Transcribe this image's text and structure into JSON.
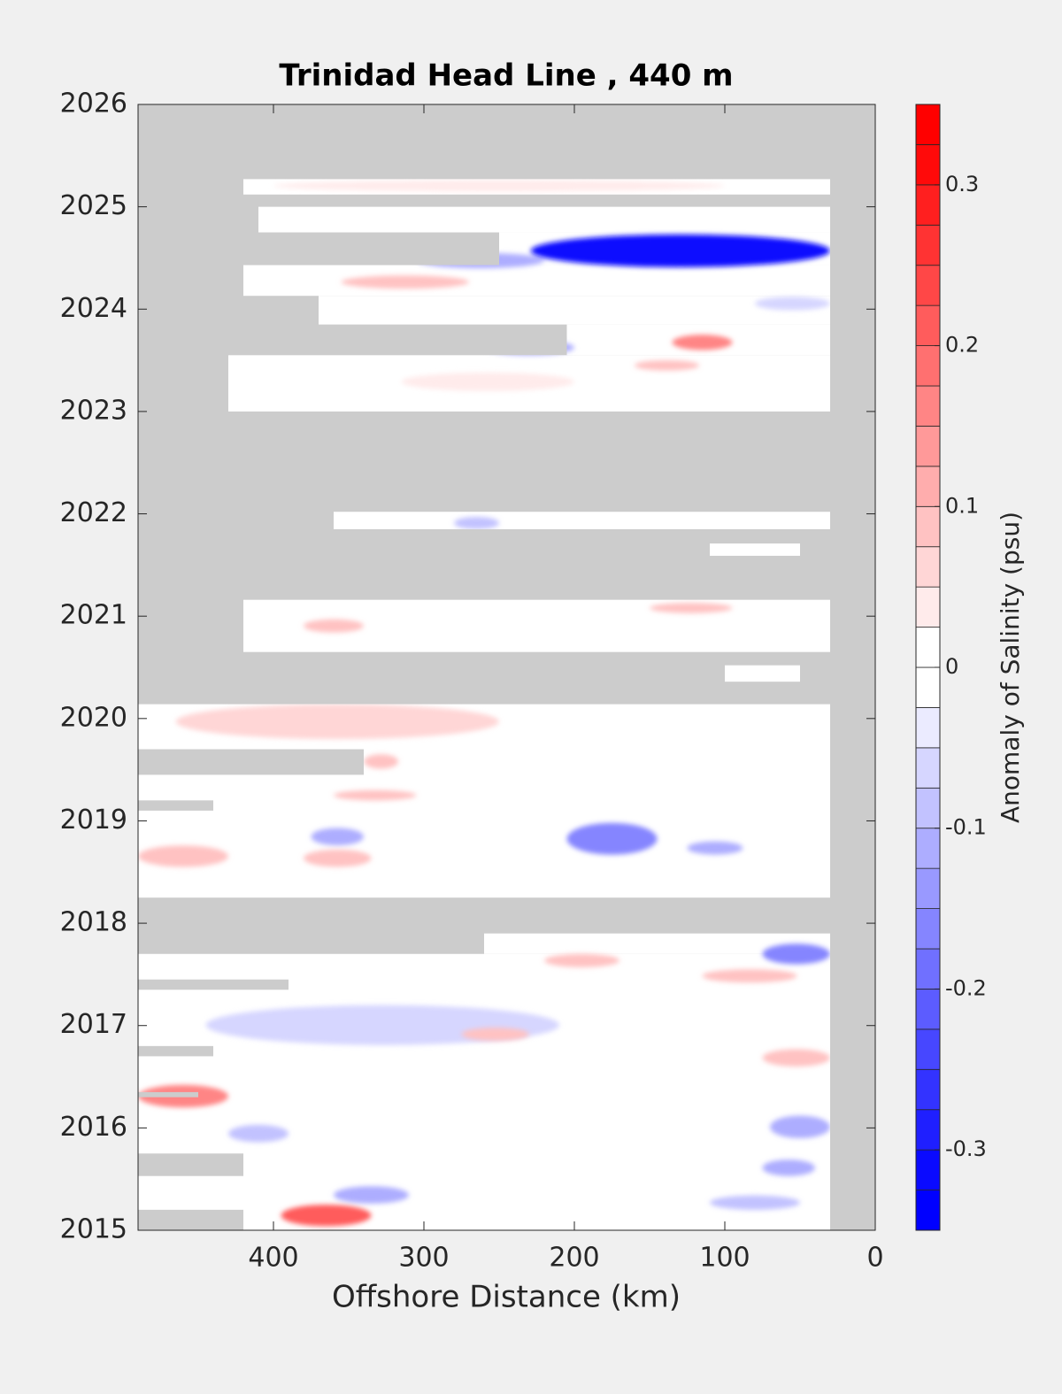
{
  "chart_data": {
    "type": "contour",
    "title": "Trinidad Head Line , 440 m",
    "x_label": "Offshore Distance (km)",
    "xlim": [
      490,
      0
    ],
    "xticks": [
      400,
      300,
      200,
      100,
      0
    ],
    "ylim": [
      2015,
      2026
    ],
    "yticks": [
      2015,
      2016,
      2017,
      2018,
      2019,
      2020,
      2021,
      2022,
      2023,
      2024,
      2025,
      2026
    ],
    "no_data_color": "#cccccc",
    "colorbar": {
      "label": "Anomaly of Salinity (psu)",
      "clim": [
        -0.35,
        0.35
      ],
      "level_step": 0.025,
      "ticks": [
        -0.3,
        -0.2,
        -0.1,
        0,
        0.1,
        0.2,
        0.3
      ],
      "low_color": "#0000ff",
      "high_color": "#ff0000"
    },
    "coverage": [
      {
        "x": [
          420,
          30
        ],
        "y": [
          2025.12,
          2025.27
        ]
      },
      {
        "x": [
          410,
          30
        ],
        "y": [
          2024.75,
          2025.0
        ]
      },
      {
        "x": [
          250,
          30
        ],
        "y": [
          2024.43,
          2024.75
        ]
      },
      {
        "x": [
          420,
          30
        ],
        "y": [
          2024.13,
          2024.43
        ]
      },
      {
        "x": [
          370,
          30
        ],
        "y": [
          2023.85,
          2024.13
        ]
      },
      {
        "x": [
          205,
          30
        ],
        "y": [
          2023.55,
          2023.85
        ]
      },
      {
        "x": [
          430,
          30
        ],
        "y": [
          2023.0,
          2023.55
        ]
      },
      {
        "x": [
          360,
          30
        ],
        "y": [
          2021.85,
          2022.02
        ]
      },
      {
        "x": [
          110,
          50
        ],
        "y": [
          2021.59,
          2021.71
        ]
      },
      {
        "x": [
          420,
          30
        ],
        "y": [
          2020.65,
          2021.16
        ]
      },
      {
        "x": [
          100,
          50
        ],
        "y": [
          2020.36,
          2020.52
        ]
      },
      {
        "x": [
          490,
          30
        ],
        "y": [
          2018.25,
          2020.14
        ]
      },
      {
        "x": [
          260,
          30
        ],
        "y": [
          2017.7,
          2017.9
        ]
      },
      {
        "x": [
          490,
          30
        ],
        "y": [
          2015,
          2017.7
        ]
      }
    ],
    "gaps": [
      {
        "x": [
          490,
          340
        ],
        "y": [
          2019.45,
          2019.7
        ]
      },
      {
        "x": [
          490,
          440
        ],
        "y": [
          2019.1,
          2019.2
        ]
      },
      {
        "x": [
          490,
          390
        ],
        "y": [
          2017.35,
          2017.45
        ]
      },
      {
        "x": [
          490,
          440
        ],
        "y": [
          2016.7,
          2016.8
        ]
      },
      {
        "x": [
          490,
          450
        ],
        "y": [
          2016.3,
          2016.35
        ]
      },
      {
        "x": [
          490,
          420
        ],
        "y": [
          2015.53,
          2015.75
        ]
      },
      {
        "x": [
          490,
          420
        ],
        "y": [
          2015,
          2015.2
        ]
      }
    ],
    "anomalies": [
      {
        "x": [
          305,
          220
        ],
        "y": [
          2024.4,
          2024.55
        ],
        "value": -0.12
      },
      {
        "x": [
          229,
          30
        ],
        "y": [
          2024.41,
          2024.73
        ],
        "value": -0.3
      },
      {
        "x": [
          400,
          100
        ],
        "y": [
          2025.15,
          2025.26
        ],
        "value": 0.05
      },
      {
        "x": [
          355,
          270
        ],
        "y": [
          2024.2,
          2024.33
        ],
        "value": 0.1
      },
      {
        "x": [
          135,
          95
        ],
        "y": [
          2023.6,
          2023.75
        ],
        "value": 0.15
      },
      {
        "x": [
          160,
          117
        ],
        "y": [
          2023.4,
          2023.5
        ],
        "value": 0.1
      },
      {
        "x": [
          260,
          200
        ],
        "y": [
          2023.55,
          2023.7
        ],
        "value": -0.1
      },
      {
        "x": [
          315,
          200
        ],
        "y": [
          2023.2,
          2023.38
        ],
        "value": 0.05
      },
      {
        "x": [
          80,
          30
        ],
        "y": [
          2023.99,
          2024.12
        ],
        "value": -0.05
      },
      {
        "x": [
          280,
          250
        ],
        "y": [
          2021.85,
          2021.97
        ],
        "value": -0.08
      },
      {
        "x": [
          150,
          95
        ],
        "y": [
          2021.03,
          2021.13
        ],
        "value": 0.08
      },
      {
        "x": [
          380,
          340
        ],
        "y": [
          2020.84,
          2020.97
        ],
        "value": 0.08
      },
      {
        "x": [
          465,
          250
        ],
        "y": [
          2019.8,
          2020.14
        ],
        "value": 0.06
      },
      {
        "x": [
          340,
          317
        ],
        "y": [
          2019.51,
          2019.65
        ],
        "value": 0.08
      },
      {
        "x": [
          360,
          305
        ],
        "y": [
          2019.2,
          2019.3
        ],
        "value": 0.08
      },
      {
        "x": [
          205,
          145
        ],
        "y": [
          2018.67,
          2018.98
        ],
        "value": -0.15
      },
      {
        "x": [
          375,
          340
        ],
        "y": [
          2018.76,
          2018.93
        ],
        "value": -0.12
      },
      {
        "x": [
          490,
          430
        ],
        "y": [
          2018.55,
          2018.76
        ],
        "value": 0.1
      },
      {
        "x": [
          380,
          335
        ],
        "y": [
          2018.55,
          2018.72
        ],
        "value": 0.08
      },
      {
        "x": [
          125,
          88
        ],
        "y": [
          2018.67,
          2018.8
        ],
        "value": -0.1
      },
      {
        "x": [
          75,
          30
        ],
        "y": [
          2017.6,
          2017.8
        ],
        "value": -0.15
      },
      {
        "x": [
          220,
          170
        ],
        "y": [
          2017.57,
          2017.7
        ],
        "value": 0.08
      },
      {
        "x": [
          115,
          52
        ],
        "y": [
          2017.42,
          2017.55
        ],
        "value": 0.08
      },
      {
        "x": [
          445,
          210
        ],
        "y": [
          2016.81,
          2017.2
        ],
        "value": -0.06
      },
      {
        "x": [
          275,
          230
        ],
        "y": [
          2016.85,
          2016.98
        ],
        "value": 0.08
      },
      {
        "x": [
          75,
          30
        ],
        "y": [
          2016.6,
          2016.77
        ],
        "value": 0.1
      },
      {
        "x": [
          490,
          430
        ],
        "y": [
          2016.2,
          2016.42
        ],
        "value": 0.15
      },
      {
        "x": [
          70,
          30
        ],
        "y": [
          2015.9,
          2016.12
        ],
        "value": -0.12
      },
      {
        "x": [
          360,
          310
        ],
        "y": [
          2015.26,
          2015.43
        ],
        "value": -0.1
      },
      {
        "x": [
          395,
          335
        ],
        "y": [
          2015.04,
          2015.25
        ],
        "value": 0.2
      },
      {
        "x": [
          430,
          390
        ],
        "y": [
          2015.86,
          2016.03
        ],
        "value": -0.08
      },
      {
        "x": [
          75,
          40
        ],
        "y": [
          2015.53,
          2015.69
        ],
        "value": -0.1
      },
      {
        "x": [
          110,
          50
        ],
        "y": [
          2015.2,
          2015.34
        ],
        "value": -0.08
      }
    ]
  }
}
